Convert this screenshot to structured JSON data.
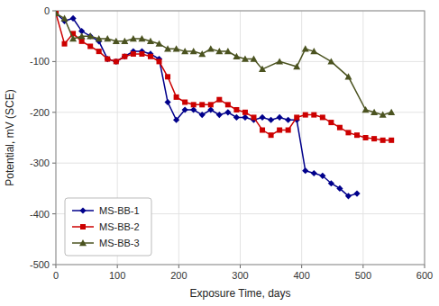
{
  "chart_data": {
    "type": "line",
    "title": "",
    "xlabel": "Exposure Time, days",
    "ylabel": "Potential, mV (SCE)",
    "xlim": [
      0,
      600
    ],
    "ylim": [
      -500,
      0
    ],
    "xticks": [
      0,
      100,
      200,
      300,
      400,
      500,
      600
    ],
    "yticks": [
      0,
      -100,
      -200,
      -300,
      -400,
      -500
    ],
    "grid": true,
    "legend": "lower left",
    "series": [
      {
        "name": "MS-BB-1",
        "color": "#00008B",
        "marker": "diamond",
        "x": [
          0,
          14,
          28,
          42,
          56,
          70,
          84,
          98,
          112,
          126,
          140,
          154,
          168,
          182,
          196,
          210,
          224,
          238,
          252,
          266,
          280,
          294,
          308,
          322,
          336,
          350,
          364,
          378,
          392,
          406,
          420,
          434,
          448,
          462,
          476,
          490
        ],
        "values": [
          -5,
          -20,
          -15,
          -40,
          -50,
          -60,
          -95,
          -100,
          -90,
          -80,
          -80,
          -85,
          -95,
          -180,
          -215,
          -195,
          -195,
          -205,
          -195,
          -205,
          -200,
          -210,
          -210,
          -215,
          -210,
          -215,
          -210,
          -215,
          -215,
          -315,
          -320,
          -325,
          -340,
          -350,
          -365,
          -360
        ]
      },
      {
        "name": "MS-BB-2",
        "color": "#CC0000",
        "marker": "square",
        "x": [
          0,
          14,
          28,
          42,
          56,
          70,
          84,
          98,
          112,
          126,
          140,
          154,
          168,
          182,
          196,
          210,
          224,
          238,
          252,
          266,
          280,
          294,
          308,
          322,
          336,
          350,
          364,
          378,
          392,
          406,
          420,
          434,
          448,
          462,
          476,
          490,
          504,
          518,
          532,
          546
        ],
        "values": [
          -5,
          -65,
          -45,
          -60,
          -70,
          -80,
          -95,
          -100,
          -90,
          -85,
          -85,
          -90,
          -100,
          -130,
          -170,
          -180,
          -185,
          -185,
          -185,
          -175,
          -185,
          -195,
          -200,
          -210,
          -235,
          -245,
          -235,
          -235,
          -210,
          -205,
          -205,
          -210,
          -220,
          -230,
          -240,
          -245,
          -250,
          -252,
          -255,
          -255
        ]
      },
      {
        "name": "MS-BB-3",
        "color": "#4B5320",
        "marker": "triangle",
        "x": [
          0,
          14,
          28,
          42,
          56,
          70,
          84,
          98,
          112,
          126,
          140,
          154,
          168,
          182,
          196,
          210,
          224,
          238,
          252,
          266,
          280,
          294,
          308,
          322,
          336,
          364,
          392,
          406,
          420,
          448,
          476,
          504,
          518,
          532,
          546
        ],
        "values": [
          -5,
          -15,
          -55,
          -50,
          -50,
          -55,
          -55,
          -60,
          -60,
          -55,
          -55,
          -60,
          -65,
          -75,
          -75,
          -80,
          -80,
          -85,
          -75,
          -80,
          -80,
          -90,
          -95,
          -95,
          -115,
          -100,
          -110,
          -75,
          -80,
          -100,
          -130,
          -195,
          -200,
          -205,
          -200
        ]
      }
    ]
  }
}
